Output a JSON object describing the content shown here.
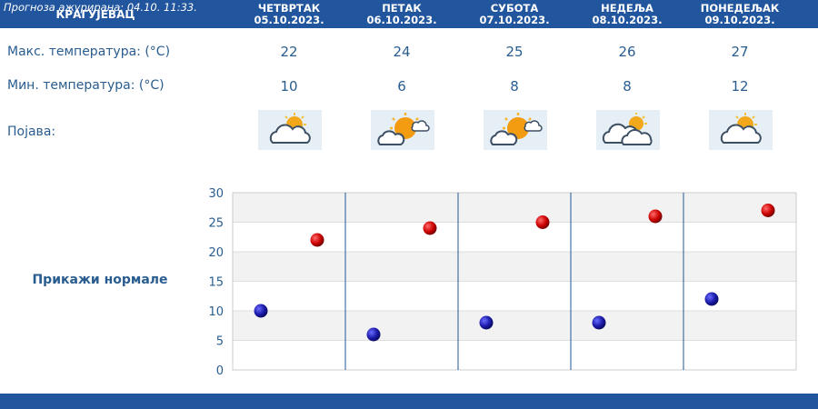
{
  "header": {
    "city": "КРАГУЈЕВАЦ",
    "days": [
      {
        "name": "ЧЕТВРТАК",
        "date": "05.10.2023."
      },
      {
        "name": "ПЕТАК",
        "date": "06.10.2023."
      },
      {
        "name": "СУБОТА",
        "date": "07.10.2023."
      },
      {
        "name": "НЕДЕЉА",
        "date": "08.10.2023."
      },
      {
        "name": "ПОНЕДЕЉАК",
        "date": "09.10.2023."
      }
    ]
  },
  "rows": {
    "max_label": "Макс. температура: (°C)",
    "min_label": "Мин. температура: (°C)",
    "phenomenon_label": "Појава:",
    "max_values": [
      "22",
      "24",
      "25",
      "26",
      "27"
    ],
    "min_values": [
      "10",
      "6",
      "8",
      "8",
      "12"
    ],
    "icons": [
      "sun-behind-cloud-icon",
      "partly-sunny-icon",
      "partly-sunny-icon",
      "cloudy-with-sun-icon",
      "sun-behind-cloud-icon"
    ]
  },
  "normals_link": "Прикажи нормале",
  "chart_data": {
    "type": "scatter",
    "categories": [
      "ЧЕТВРТАК",
      "ПЕТАК",
      "СУБОТА",
      "НЕДЕЉА",
      "ПОНЕДЕЉАК"
    ],
    "series": [
      {
        "values": [
          22,
          24,
          25,
          26,
          27
        ],
        "color": "#cc0000"
      },
      {
        "values": [
          10,
          6,
          8,
          8,
          12
        ],
        "color": "#1a1aa8"
      }
    ],
    "ylim": [
      0,
      30
    ],
    "yticks": [
      "0",
      "5",
      "10",
      "15",
      "20",
      "25",
      "30"
    ],
    "grid": true
  },
  "footer": {
    "text": "Прогноза ажурирана:  04.10. 11:33."
  },
  "colors": {
    "header_bg": "#21559d",
    "text": "#2a5d8f",
    "max_marker": "#cc0000",
    "min_marker": "#1a1aa8"
  }
}
